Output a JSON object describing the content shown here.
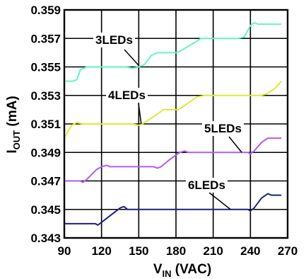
{
  "chart_data": {
    "type": "line",
    "x_axis": {
      "label_main": "V",
      "label_sub": "IN",
      "label_suffix": " (VAC)",
      "range": [
        90,
        270
      ],
      "ticks": [
        "90",
        "120",
        "150",
        "180",
        "210",
        "240",
        "270"
      ]
    },
    "y_axis": {
      "label_main": "I",
      "label_sub": "OUT",
      "label_suffix": " (mA)",
      "range": [
        0.343,
        0.359
      ],
      "ticks": [
        "0.343",
        "0.345",
        "0.347",
        "0.349",
        "0.351",
        "0.353",
        "0.355",
        "0.357",
        "0.359"
      ]
    },
    "grid": true,
    "series": [
      {
        "name": "3LEDs",
        "color": "#66f2c2",
        "points": [
          [
            90,
            0.354
          ],
          [
            97,
            0.354
          ],
          [
            100,
            0.3541
          ],
          [
            103,
            0.3548
          ],
          [
            108,
            0.355
          ],
          [
            140,
            0.355
          ],
          [
            145,
            0.3549
          ],
          [
            150,
            0.355
          ],
          [
            155,
            0.3552
          ],
          [
            160,
            0.3558
          ],
          [
            165,
            0.356
          ],
          [
            180,
            0.356
          ],
          [
            183,
            0.3561
          ],
          [
            195,
            0.3567
          ],
          [
            200,
            0.357
          ],
          [
            230,
            0.357
          ],
          [
            235,
            0.3571
          ],
          [
            240,
            0.3579
          ],
          [
            243,
            0.3581
          ],
          [
            246,
            0.358
          ],
          [
            265,
            0.358
          ]
        ]
      },
      {
        "name": "4LEDs",
        "color": "#e0e838",
        "points": [
          [
            90,
            0.35
          ],
          [
            93,
            0.3505
          ],
          [
            96,
            0.3509
          ],
          [
            100,
            0.3511
          ],
          [
            105,
            0.351
          ],
          [
            145,
            0.351
          ],
          [
            150,
            0.3509
          ],
          [
            153,
            0.351
          ],
          [
            160,
            0.3514
          ],
          [
            170,
            0.352
          ],
          [
            182,
            0.352
          ],
          [
            187,
            0.3523
          ],
          [
            197,
            0.3529
          ],
          [
            203,
            0.353
          ],
          [
            248,
            0.353
          ],
          [
            253,
            0.3531
          ],
          [
            260,
            0.3535
          ],
          [
            265,
            0.354
          ]
        ]
      },
      {
        "name": "5LEDs",
        "color": "#b05cf0",
        "points": [
          [
            90,
            0.347
          ],
          [
            103,
            0.347
          ],
          [
            105,
            0.3469
          ],
          [
            108,
            0.3471
          ],
          [
            116,
            0.3478
          ],
          [
            120,
            0.348
          ],
          [
            124,
            0.3481
          ],
          [
            127,
            0.348
          ],
          [
            162,
            0.348
          ],
          [
            165,
            0.3479
          ],
          [
            168,
            0.348
          ],
          [
            175,
            0.3485
          ],
          [
            183,
            0.349
          ],
          [
            187,
            0.3491
          ],
          [
            190,
            0.349
          ],
          [
            238,
            0.349
          ],
          [
            240,
            0.3489
          ],
          [
            243,
            0.3491
          ],
          [
            249,
            0.3497
          ],
          [
            254,
            0.35
          ],
          [
            257,
            0.35
          ],
          [
            265,
            0.35
          ]
        ]
      },
      {
        "name": "6LEDs",
        "color": "#1a237e",
        "points": [
          [
            90,
            0.344
          ],
          [
            115,
            0.344
          ],
          [
            117,
            0.3439
          ],
          [
            120,
            0.3441
          ],
          [
            126,
            0.3445
          ],
          [
            135,
            0.3451
          ],
          [
            138,
            0.3452
          ],
          [
            141,
            0.345
          ],
          [
            238,
            0.345
          ],
          [
            240,
            0.3449
          ],
          [
            243,
            0.3451
          ],
          [
            249,
            0.3458
          ],
          [
            254,
            0.3461
          ],
          [
            257,
            0.346
          ],
          [
            265,
            0.346
          ]
        ]
      }
    ],
    "annotations": [
      {
        "series": "3LEDs",
        "text": "3LEDs",
        "leader_to": [
          150,
          0.3551
        ]
      },
      {
        "series": "4LEDs",
        "text": "4LEDs",
        "leader_to": [
          152,
          0.351
        ]
      },
      {
        "series": "5LEDs",
        "text": "5LEDs",
        "leader_to": [
          233,
          0.349
        ]
      },
      {
        "series": "6LEDs",
        "text": "6LEDs",
        "leader_to": [
          224,
          0.345
        ]
      }
    ]
  }
}
